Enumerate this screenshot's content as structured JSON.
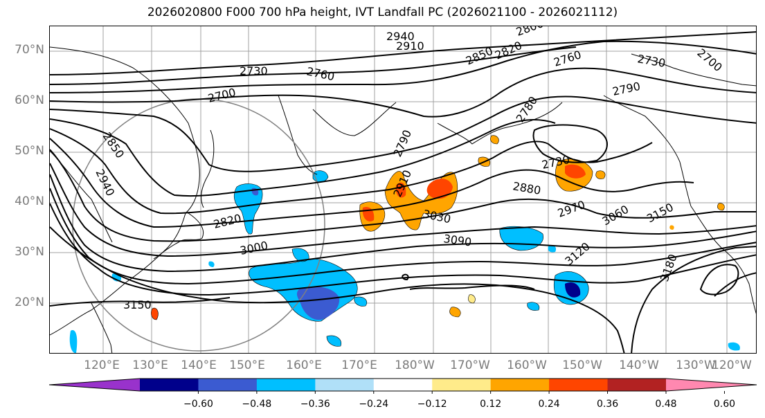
{
  "title": "2026020800 F000 700 hPa height, IVT Landfall PC (2026021100 - 2026021112)",
  "map": {
    "lat_ticks": [
      "70°N",
      "60°N",
      "50°N",
      "40°N",
      "30°N",
      "20°N"
    ],
    "lon_ticks": [
      "120°E",
      "130°E",
      "140°E",
      "150°E",
      "160°E",
      "170°E",
      "180°W",
      "170°W",
      "160°W",
      "150°W",
      "140°W",
      "130°W",
      "120°W"
    ],
    "contour_labels": [
      "2940",
      "2910",
      "2850",
      "2820",
      "2760",
      "2730",
      "2760",
      "2700",
      "2730",
      "2790",
      "2850",
      "2940",
      "2820",
      "3000",
      "3150",
      "2790",
      "2910",
      "3030",
      "3090",
      "2880",
      "2730",
      "2780",
      "2970",
      "3060",
      "3150",
      "3120",
      "3180",
      "2800",
      "2700"
    ]
  },
  "colorbar": {
    "ticks": [
      "−0.60",
      "−0.48",
      "−0.36",
      "−0.24",
      "−0.12",
      "0.12",
      "0.24",
      "0.36",
      "0.48",
      "0.60"
    ],
    "colors": [
      "#9932cc",
      "#00008b",
      "#3b5bd1",
      "#00bfff",
      "#b0e0f8",
      "#ffffff",
      "#ffeb8a",
      "#ffa500",
      "#ff4500",
      "#b22222",
      "#ff88b0"
    ]
  }
}
